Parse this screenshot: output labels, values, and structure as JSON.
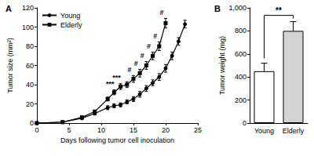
{
  "chart_data": [
    {
      "type": "line",
      "title": "A",
      "x_label": "Days following tumor cell inoculation",
      "y_label": "Tumor size (mm²)",
      "xlim": [
        0,
        25
      ],
      "xticks": [
        0,
        5,
        10,
        15,
        20,
        25
      ],
      "ylim": [
        0,
        120
      ],
      "yticks": [
        0,
        20,
        40,
        60,
        80,
        100,
        120
      ],
      "legend": "upper left",
      "series": [
        {
          "name": "Young",
          "color": "#000000",
          "marker": "circle",
          "x": [
            0,
            4,
            7,
            9,
            11,
            12,
            13,
            14,
            15,
            16,
            17,
            18,
            19,
            20,
            21,
            22,
            23
          ],
          "values": [
            0,
            1,
            5,
            10,
            16,
            18,
            19,
            22,
            25,
            30,
            36,
            42,
            48,
            57,
            70,
            85,
            103
          ],
          "errors": [
            0,
            0.5,
            1,
            1.5,
            2,
            2,
            2,
            2,
            2.5,
            3,
            3,
            3,
            3.5,
            4,
            4,
            4,
            4
          ]
        },
        {
          "name": "Elderly",
          "color": "#000000",
          "marker": "square",
          "x": [
            0,
            4,
            7,
            9,
            11,
            12,
            13,
            14,
            15,
            16,
            17,
            18,
            19,
            20
          ],
          "values": [
            0,
            1,
            6,
            12,
            25,
            32,
            38,
            40,
            46,
            52,
            60,
            70,
            80,
            104
          ],
          "errors": [
            0,
            0.5,
            1,
            1.5,
            2,
            2.5,
            3,
            3,
            3.5,
            4,
            4,
            4,
            4.5,
            5
          ]
        }
      ],
      "annotations": [
        {
          "series": "Elderly",
          "x": 12,
          "text": "***"
        },
        {
          "series": "Elderly",
          "x": 13,
          "text": "***"
        },
        {
          "series": "Elderly",
          "x": 15,
          "text": "#"
        },
        {
          "series": "Elderly",
          "x": 16,
          "text": "#"
        },
        {
          "series": "Elderly",
          "x": 17,
          "text": "#"
        },
        {
          "series": "Elderly",
          "x": 18,
          "text": "#"
        },
        {
          "series": "Elderly",
          "x": 19,
          "text": "#"
        },
        {
          "series": "Elderly",
          "x": 20,
          "text": "#"
        }
      ]
    },
    {
      "type": "bar",
      "title": "B",
      "y_label": "Tumor weight (mg)",
      "categories": [
        "Young",
        "Elderly"
      ],
      "values": [
        450,
        800
      ],
      "errors": [
        70,
        80
      ],
      "colors": [
        "#ffffff",
        "#d3d3d3"
      ],
      "ylim": [
        0,
        1000
      ],
      "yticks": [
        0,
        200,
        400,
        600,
        800,
        1000
      ],
      "annotations": [
        {
          "from": "Young",
          "to": "Elderly",
          "text": "**"
        }
      ]
    }
  ]
}
